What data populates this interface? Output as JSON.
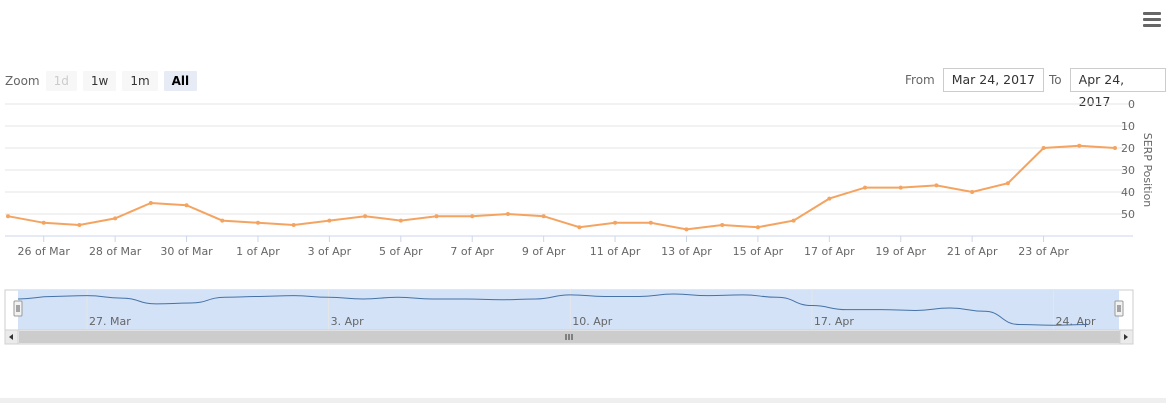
{
  "toolbar": {
    "zoom_label": "Zoom",
    "buttons": [
      {
        "label": "1d",
        "state": "disabled"
      },
      {
        "label": "1w",
        "state": "normal"
      },
      {
        "label": "1m",
        "state": "normal"
      },
      {
        "label": "All",
        "state": "selected"
      }
    ],
    "from_label": "From",
    "from_value": "Mar 24, 2017",
    "to_label": "To",
    "to_value": "Apr 24, 2017"
  },
  "chart_data": {
    "type": "line",
    "title": "",
    "ylabel": "SERP Position",
    "y_reversed": true,
    "ylim": [
      0,
      60
    ],
    "yticks": [
      0,
      10,
      20,
      30,
      40,
      50
    ],
    "grid": true,
    "x_tick_labels": [
      "26 of Mar",
      "28 of Mar",
      "30 of Mar",
      "1 of Apr",
      "3 of Apr",
      "5 of Apr",
      "7 of Apr",
      "9 of Apr",
      "11 of Apr",
      "13 of Apr",
      "15 of Apr",
      "17 of Apr",
      "19 of Apr",
      "21 of Apr",
      "23 of Apr"
    ],
    "x_tick_dates": [
      "2017-03-26",
      "2017-03-28",
      "2017-03-30",
      "2017-04-01",
      "2017-04-03",
      "2017-04-05",
      "2017-04-07",
      "2017-04-09",
      "2017-04-11",
      "2017-04-13",
      "2017-04-15",
      "2017-04-17",
      "2017-04-19",
      "2017-04-21",
      "2017-04-23"
    ],
    "series": [
      {
        "color": "#f4a460",
        "x": [
          "2017-03-25",
          "2017-03-26",
          "2017-03-27",
          "2017-03-28",
          "2017-03-29",
          "2017-03-30",
          "2017-03-31",
          "2017-04-01",
          "2017-04-02",
          "2017-04-03",
          "2017-04-04",
          "2017-04-05",
          "2017-04-06",
          "2017-04-07",
          "2017-04-08",
          "2017-04-09",
          "2017-04-10",
          "2017-04-11",
          "2017-04-12",
          "2017-04-13",
          "2017-04-14",
          "2017-04-15",
          "2017-04-16",
          "2017-04-17",
          "2017-04-18",
          "2017-04-19",
          "2017-04-20",
          "2017-04-21",
          "2017-04-22",
          "2017-04-23",
          "2017-04-24",
          "2017-04-25"
        ],
        "values": [
          51,
          54,
          55,
          52,
          45,
          46,
          53,
          54,
          55,
          53,
          51,
          53,
          51,
          51,
          50,
          51,
          56,
          54,
          54,
          57,
          55,
          56,
          53,
          43,
          38,
          38,
          37,
          40,
          36,
          20,
          19,
          20
        ]
      }
    ],
    "navigator": {
      "tick_labels": [
        "27. Mar",
        "3. Apr",
        "10. Apr",
        "17. Apr",
        "24. Apr"
      ],
      "tick_dates": [
        "2017-03-27",
        "2017-04-03",
        "2017-04-10",
        "2017-04-17",
        "2017-04-24"
      ],
      "line_color": "#4572a7",
      "fill_color": "#d3e2f6"
    }
  }
}
